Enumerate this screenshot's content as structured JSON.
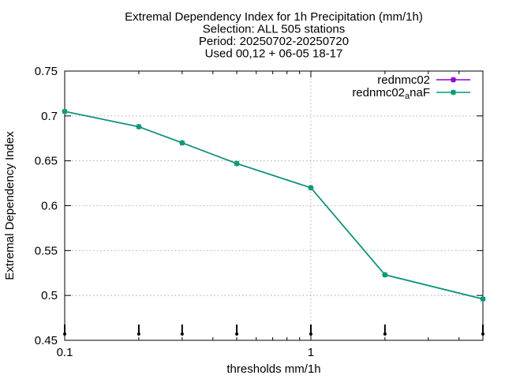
{
  "chart_data": {
    "type": "line",
    "title_lines": [
      "Extremal Dependency Index  for 1h Precipitation (mm/1h)",
      "Selection: ALL    505 stations",
      "Period: 20250702-20250720",
      "Used 00,12 + 06-05 18-17"
    ],
    "xlabel": "thresholds mm/1h",
    "ylabel": "Extremal Dependency Index",
    "x_scale": "log",
    "xlim": [
      0.1,
      5
    ],
    "ylim": [
      0.45,
      0.75
    ],
    "x_ticks": [
      {
        "value": 0.1,
        "label": "0.1"
      },
      {
        "value": 1,
        "label": "1"
      }
    ],
    "y_ticks": [
      {
        "value": 0.45,
        "label": "0.45"
      },
      {
        "value": 0.5,
        "label": "0.5"
      },
      {
        "value": 0.55,
        "label": "0.55"
      },
      {
        "value": 0.6,
        "label": "0.6"
      },
      {
        "value": 0.65,
        "label": "0.65"
      },
      {
        "value": 0.7,
        "label": "0.7"
      },
      {
        "value": 0.75,
        "label": "0.75"
      }
    ],
    "grid": true,
    "legend_position": "top-right",
    "x": [
      0.1,
      0.2,
      0.3,
      0.5,
      1,
      2,
      5
    ],
    "series": [
      {
        "name": "rednmc02",
        "color": "#9400d3",
        "values": [
          0.705,
          0.688,
          0.67,
          0.647,
          0.62,
          0.523,
          0.496
        ]
      },
      {
        "name_main": "rednmc02",
        "name_sub": "a",
        "name_tail": "naF",
        "color": "#009e73",
        "values": [
          0.705,
          0.688,
          0.67,
          0.647,
          0.62,
          0.523,
          0.496
        ]
      }
    ],
    "rug_x": [
      0.1,
      0.2,
      0.3,
      0.5,
      1,
      2,
      5
    ]
  }
}
